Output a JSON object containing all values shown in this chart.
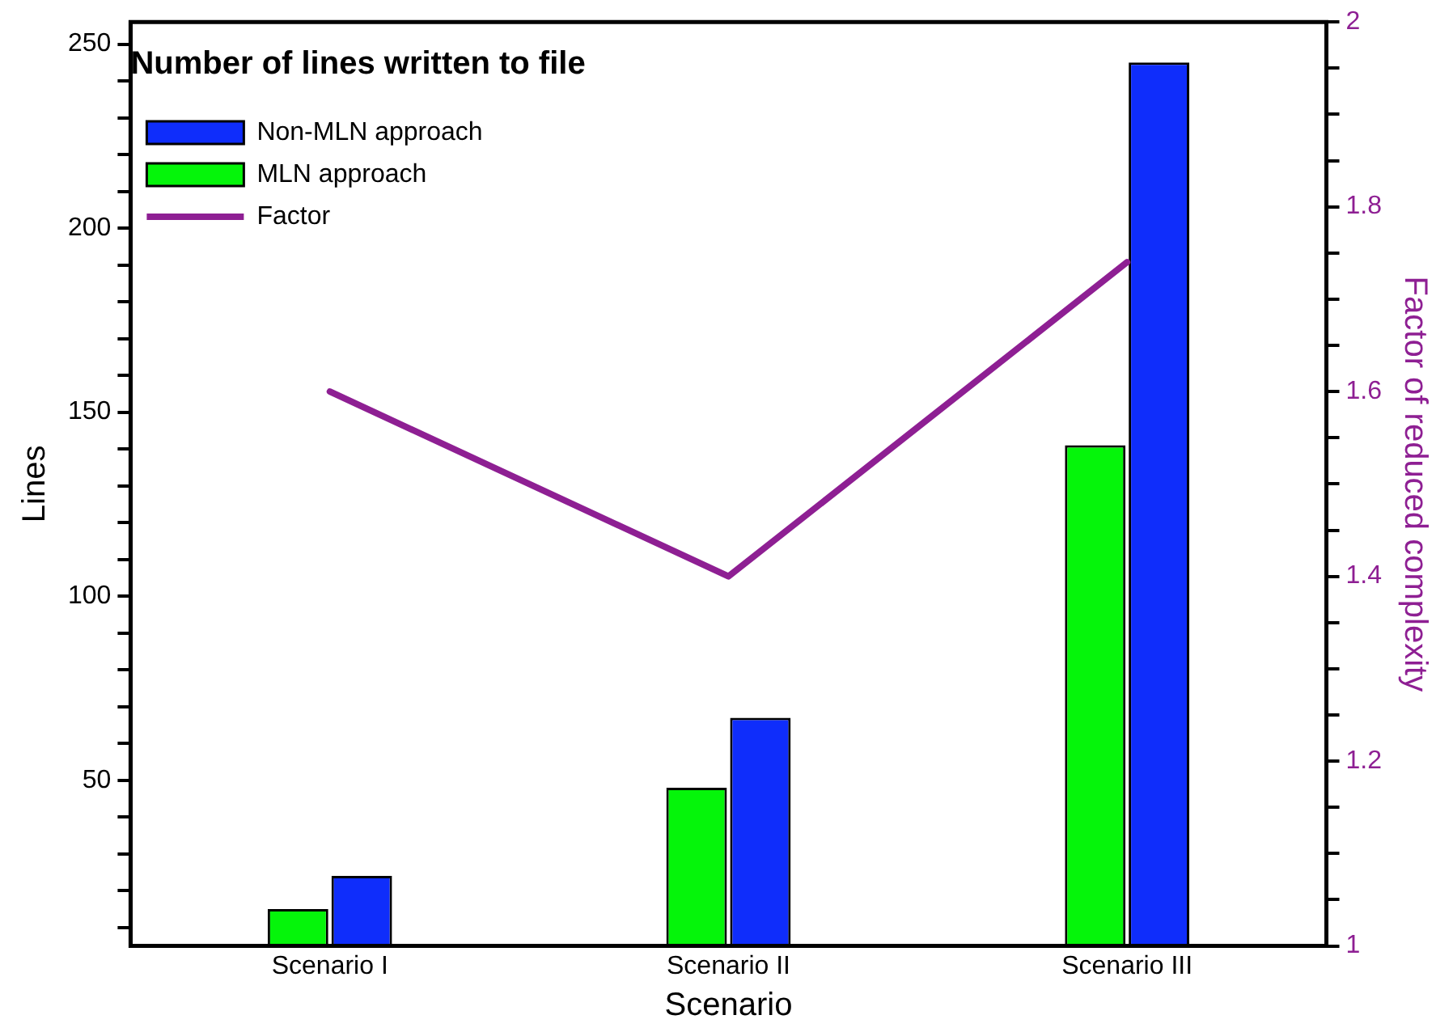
{
  "chart_data": {
    "type": "bar",
    "title": "Number of lines written to file",
    "xlabel": "Scenario",
    "ylabel": "Lines",
    "y2label": "Factor of reduced complexity",
    "categories": [
      "Scenario I",
      "Scenario II",
      "Scenario III"
    ],
    "series": [
      {
        "name": "Non-MLN approach",
        "color": "#0f2dfb",
        "values": [
          24,
          67,
          245
        ]
      },
      {
        "name": "MLN approach",
        "color": "#05f50a",
        "values": [
          15,
          48,
          141
        ]
      },
      {
        "name": "Factor",
        "type": "line",
        "axis": "y2",
        "color": "#8e1f93",
        "values": [
          1.6,
          1.4,
          1.74
        ]
      }
    ],
    "ylim": [
      5,
      256
    ],
    "yticks": [
      {
        "value": 10,
        "label": null
      },
      {
        "value": 20,
        "label": null
      },
      {
        "value": 30,
        "label": null
      },
      {
        "value": 40,
        "label": null
      },
      50,
      {
        "value": 60,
        "label": null
      },
      {
        "value": 70,
        "label": null
      },
      {
        "value": 80,
        "label": null
      },
      {
        "value": 90,
        "label": null
      },
      100,
      {
        "value": 110,
        "label": null
      },
      {
        "value": 120,
        "label": null
      },
      {
        "value": 130,
        "label": null
      },
      {
        "value": 140,
        "label": null
      },
      150,
      {
        "value": 160,
        "label": null
      },
      {
        "value": 170,
        "label": null
      },
      {
        "value": 180,
        "label": null
      },
      {
        "value": 190,
        "label": null
      },
      200,
      {
        "value": 210,
        "label": null
      },
      {
        "value": 220,
        "label": null
      },
      {
        "value": 230,
        "label": null
      },
      {
        "value": 240,
        "label": null
      },
      250
    ],
    "y2lim": [
      1,
      2
    ],
    "y2ticks": [
      1,
      {
        "value": 1.05,
        "label": null
      },
      {
        "value": 1.1,
        "label": null
      },
      {
        "value": 1.15,
        "label": null
      },
      1.2,
      {
        "value": 1.25,
        "label": null
      },
      {
        "value": 1.3,
        "label": null
      },
      {
        "value": 1.35,
        "label": null
      },
      1.4,
      {
        "value": 1.45,
        "label": null
      },
      {
        "value": 1.5,
        "label": null
      },
      {
        "value": 1.55,
        "label": null
      },
      1.6,
      {
        "value": 1.65,
        "label": null
      },
      {
        "value": 1.7,
        "label": null
      },
      {
        "value": 1.75,
        "label": null
      },
      1.8,
      {
        "value": 1.85,
        "label": null
      },
      {
        "value": 1.9,
        "label": null
      },
      {
        "value": 1.95,
        "label": null
      },
      2
    ],
    "legend": "top left",
    "grid": false,
    "marker": "none",
    "line_style": "solid"
  }
}
